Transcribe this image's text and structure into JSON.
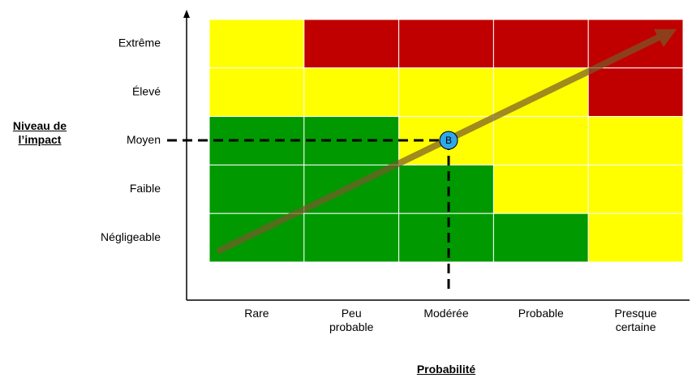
{
  "y_axis": {
    "title": "Niveau de l’impact",
    "labels": [
      "Extrême",
      "Élevé",
      "Moyen",
      "Faible",
      "Négligeable"
    ]
  },
  "x_axis": {
    "title": "Probabilité",
    "labels": [
      "Rare",
      "Peu probable",
      "Modérée",
      "Probable",
      "Presque certaine"
    ]
  },
  "cells": [
    [
      "#ffff00",
      "#c00000",
      "#c00000",
      "#c00000",
      "#c00000"
    ],
    [
      "#ffff00",
      "#ffff00",
      "#ffff00",
      "#ffff00",
      "#c00000"
    ],
    [
      "#009900",
      "#009900",
      "#ffff00",
      "#ffff00",
      "#ffff00"
    ],
    [
      "#009900",
      "#009900",
      "#009900",
      "#ffff00",
      "#ffff00"
    ],
    [
      "#009900",
      "#009900",
      "#009900",
      "#009900",
      "#ffff00"
    ]
  ],
  "marker": {
    "label": "B"
  }
}
